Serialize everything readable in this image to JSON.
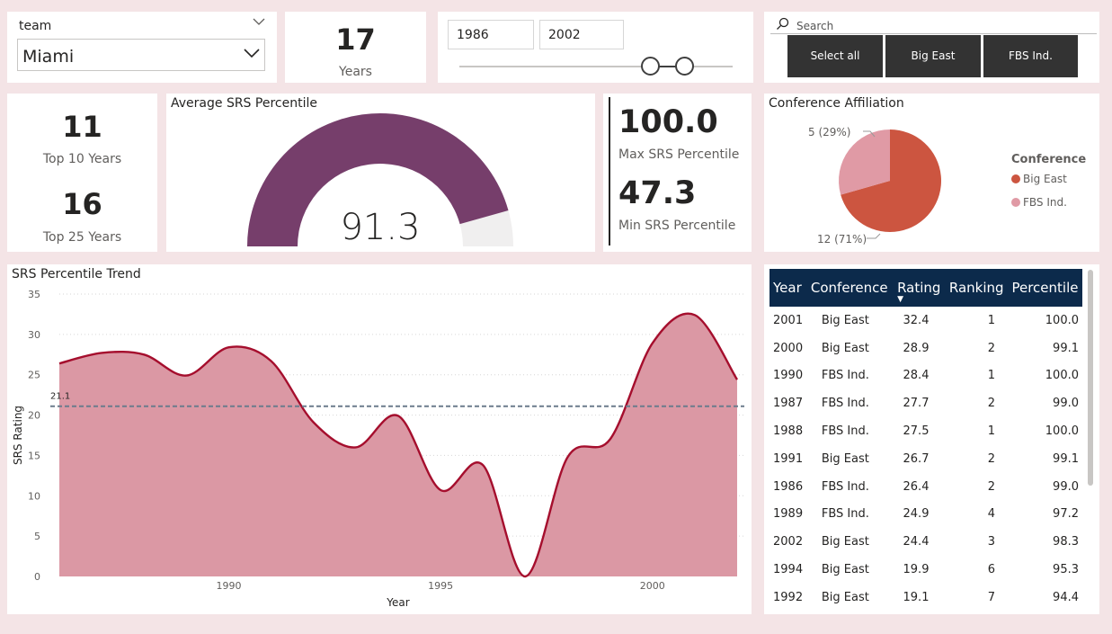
{
  "slicer": {
    "label": "team",
    "value": "Miami"
  },
  "kpi_years": {
    "value": "17",
    "label": "Years"
  },
  "range": {
    "start": "1986",
    "end": "2002"
  },
  "conference_slicer": {
    "placeholder": "Search",
    "options": [
      "Select all",
      "Big East",
      "FBS Ind."
    ]
  },
  "top_years": {
    "top10_value": "11",
    "top10_label": "Top 10 Years",
    "top25_value": "16",
    "top25_label": "Top 25 Years"
  },
  "gauge": {
    "title": "Average SRS Percentile",
    "value": "91.3",
    "fraction": 0.913,
    "color": "#763e6b"
  },
  "minmax": {
    "max_value": "100.0",
    "max_label": "Max SRS Percentile",
    "min_value": "47.3",
    "min_label": "Min SRS Percentile"
  },
  "pie": {
    "title": "Conference Affiliation",
    "legend_title": "Conference",
    "slices": [
      {
        "name": "Big East",
        "value": 12,
        "label": "12 (71%)",
        "color": "#cc5540"
      },
      {
        "name": "FBS Ind.",
        "value": 5,
        "label": "5 (29%)",
        "color": "#e09aa5"
      }
    ]
  },
  "chart_data": {
    "type": "area",
    "title": "SRS Percentile Trend",
    "xlabel": "Year",
    "ylabel": "SRS Rating",
    "x": [
      1986,
      1987,
      1988,
      1989,
      1990,
      1991,
      1992,
      1993,
      1994,
      1995,
      1996,
      1997,
      1998,
      1999,
      2000,
      2001,
      2002
    ],
    "y": [
      26.4,
      27.7,
      27.5,
      24.9,
      28.4,
      26.7,
      19.1,
      16.0,
      19.9,
      10.7,
      13.8,
      0.0,
      14.8,
      17.0,
      28.9,
      32.4,
      24.4
    ],
    "ylim": [
      0,
      35
    ],
    "yticks": [
      0,
      5,
      10,
      15,
      20,
      25,
      30,
      35
    ],
    "xticks": [
      1990,
      1995,
      2000
    ],
    "reference_line": {
      "value": 21.1,
      "label": "21.1"
    },
    "fill_color": "#db98a4",
    "line_color": "#a50e2d"
  },
  "table": {
    "columns": [
      "Year",
      "Conference",
      "Rating",
      "Ranking",
      "Percentile"
    ],
    "rows": [
      [
        "2001",
        "Big East",
        "32.4",
        "1",
        "100.0"
      ],
      [
        "2000",
        "Big East",
        "28.9",
        "2",
        "99.1"
      ],
      [
        "1990",
        "FBS Ind.",
        "28.4",
        "1",
        "100.0"
      ],
      [
        "1987",
        "FBS Ind.",
        "27.7",
        "2",
        "99.0"
      ],
      [
        "1988",
        "FBS Ind.",
        "27.5",
        "1",
        "100.0"
      ],
      [
        "1991",
        "Big East",
        "26.7",
        "2",
        "99.1"
      ],
      [
        "1986",
        "FBS Ind.",
        "26.4",
        "2",
        "99.0"
      ],
      [
        "1989",
        "FBS Ind.",
        "24.9",
        "4",
        "97.2"
      ],
      [
        "2002",
        "Big East",
        "24.4",
        "3",
        "98.3"
      ],
      [
        "1994",
        "Big East",
        "19.9",
        "6",
        "95.3"
      ],
      [
        "1992",
        "Big East",
        "19.1",
        "7",
        "94.4"
      ]
    ]
  }
}
